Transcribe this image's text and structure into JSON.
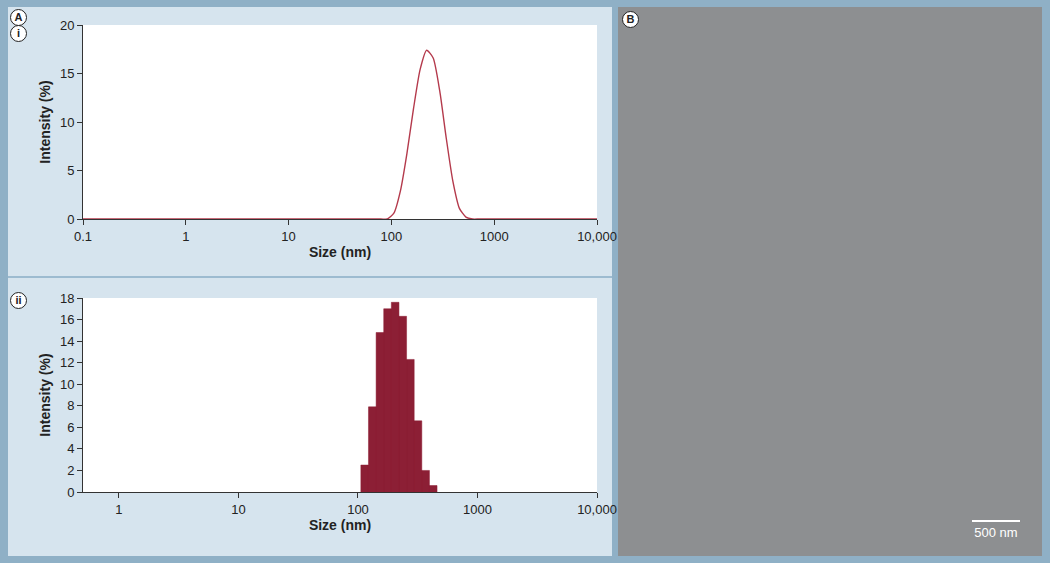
{
  "chart_data": [
    {
      "type": "line",
      "annotations": [
        "A",
        "i"
      ],
      "x_label": "Size (nm)",
      "y_label": "Intensity (%)",
      "x": [
        0.1,
        1,
        10,
        79,
        91.3,
        105.7,
        122.4,
        141.8,
        164.2,
        190.1,
        220.2,
        255,
        295.3,
        342,
        396.1,
        458.7,
        531.2,
        615.1,
        712.4,
        1000,
        10000
      ],
      "values": [
        0,
        0,
        0,
        0,
        0,
        0.6,
        2.9,
        6.8,
        11.4,
        15.4,
        17.4,
        16.6,
        13.2,
        8.3,
        3.9,
        1.1,
        0.2,
        0,
        0,
        0,
        0
      ],
      "color": "#b43a4c",
      "log": "x",
      "xlim": [
        0.1,
        10000
      ],
      "ylim": [
        0,
        20
      ],
      "xticks": [
        0.1,
        1,
        10,
        100,
        1000,
        {
          "value": 10000,
          "label": "10,000"
        }
      ],
      "yticks": [
        0,
        5,
        10,
        15,
        20
      ]
    },
    {
      "type": "histogram",
      "annotations": [
        "ii"
      ],
      "x_label": "Size (nm)",
      "y_label": "Intensity (%)",
      "bins": [
        105.7,
        122.4,
        141.8,
        164.2,
        190.1,
        220.2,
        255,
        295.3,
        342,
        396.1,
        458.7
      ],
      "values": [
        2.5,
        7.9,
        14.8,
        17.0,
        17.6,
        16.3,
        12.3,
        6.6,
        2.0,
        0.6
      ],
      "color": "#8c1f35",
      "log": "x",
      "xlim": [
        0.5,
        10000
      ],
      "ylim": [
        0,
        18
      ],
      "xticks": [
        1,
        10,
        100,
        1000,
        {
          "value": 10000,
          "label": "10,000"
        }
      ],
      "yticks": [
        0,
        2,
        4,
        6,
        8,
        10,
        12,
        14,
        16,
        18
      ]
    }
  ],
  "image": {
    "label": "B",
    "scale_bar": "500 nm"
  }
}
